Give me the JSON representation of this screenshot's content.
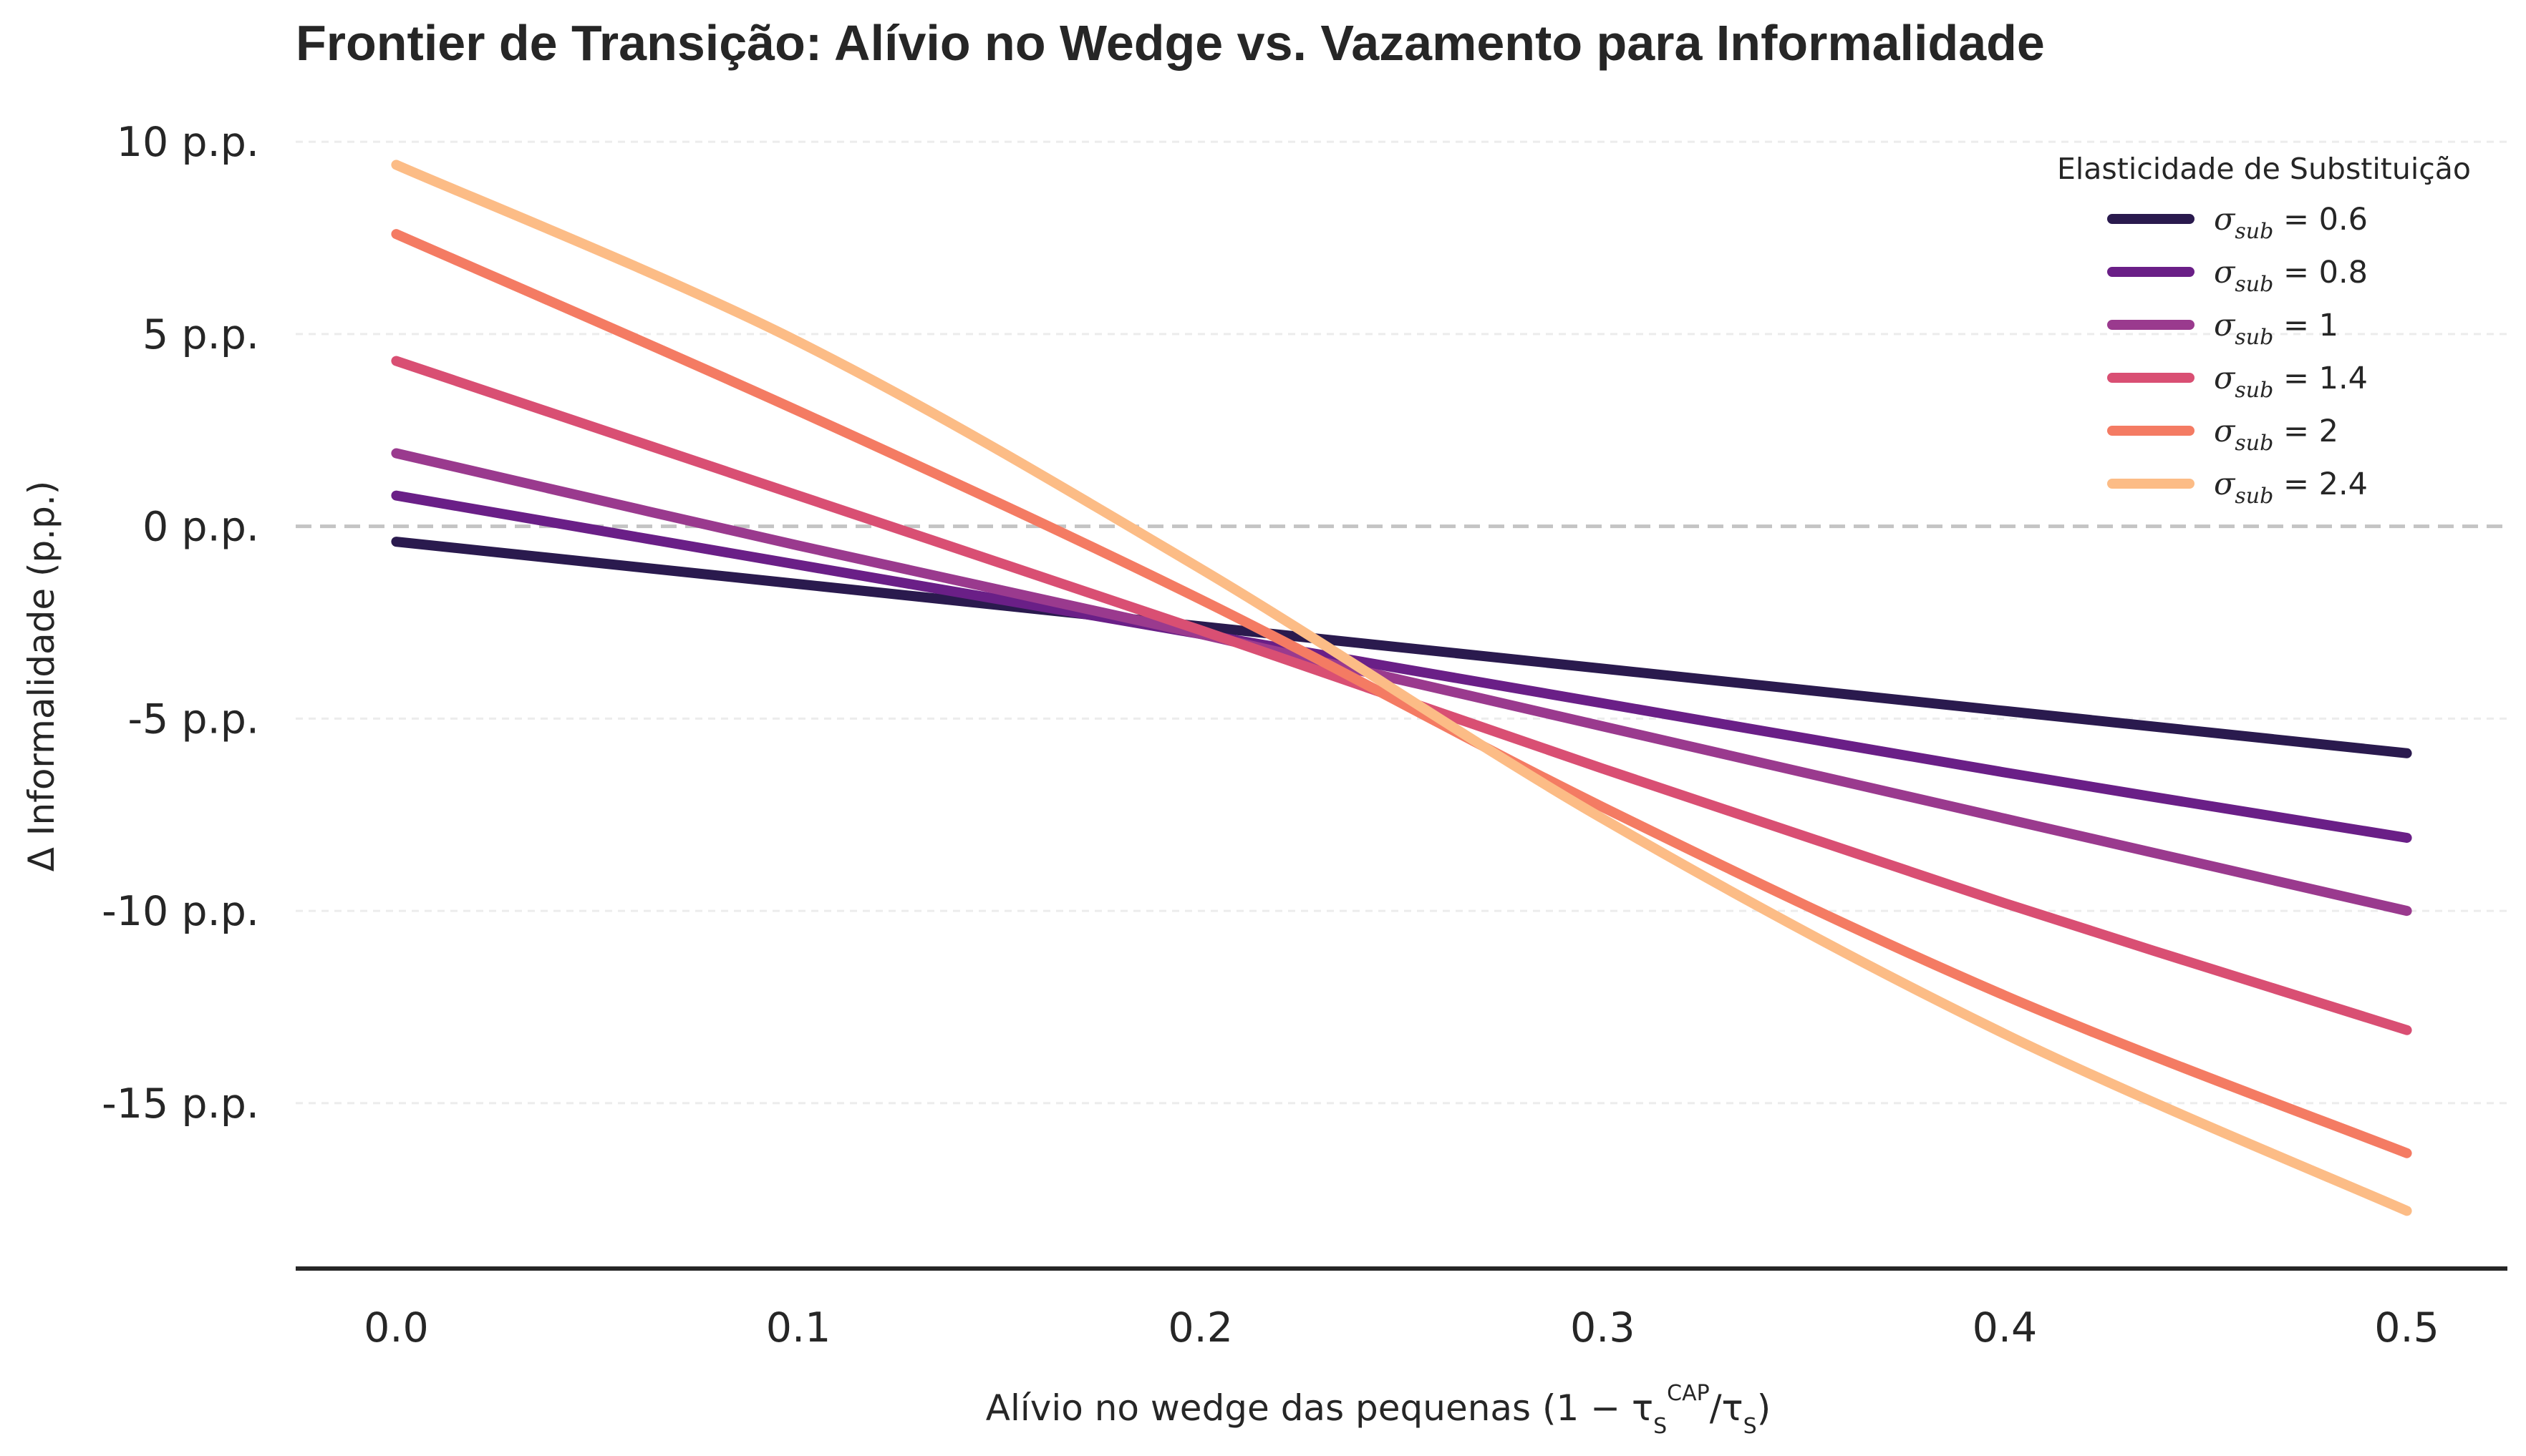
{
  "chart_data": {
    "type": "line",
    "title": "Frontier de Transição: Alívio no Wedge vs. Vazamento para Informalidade",
    "xlabel_prefix": "Alívio no wedge das pequenas (1 − τ",
    "xlabel_sub1": "S",
    "xlabel_sup1": "CAP",
    "xlabel_mid": "/τ",
    "xlabel_sub2": "S",
    "xlabel_suffix": ")",
    "ylabel": "Δ Informalidade (p.p.)",
    "xlim": [
      -0.025,
      0.525
    ],
    "ylim": [
      -19.3,
      10.3
    ],
    "x_ticks": [
      0.0,
      0.1,
      0.2,
      0.3,
      0.4,
      0.5
    ],
    "x_tick_labels": [
      "0.0",
      "0.1",
      "0.2",
      "0.3",
      "0.4",
      "0.5"
    ],
    "y_ticks": [
      10,
      5,
      0,
      -5,
      -10,
      -15
    ],
    "y_tick_labels": [
      "10 p.p.",
      "5 p.p.",
      "0 p.p.",
      "-5 p.p.",
      "-10 p.p.",
      "-15 p.p."
    ],
    "reference_line_y": 0,
    "grid": "horizontal dotted",
    "legend": {
      "title": "Elasticidade de Substituição",
      "placement": "top-right",
      "symbol": "σ",
      "subscript": "sub"
    },
    "x": [
      0.0,
      0.1,
      0.2,
      0.3,
      0.4,
      0.5
    ],
    "series": [
      {
        "name": "σ_sub = 0.6",
        "label_value": "0.6",
        "color": "#2a1a4e",
        "values": [
          -0.4,
          -1.5,
          -2.6,
          -3.7,
          -4.8,
          -5.9
        ]
      },
      {
        "name": "σ_sub = 0.8",
        "label_value": "0.8",
        "color": "#6a1f87",
        "values": [
          0.8,
          -1.0,
          -2.8,
          -4.6,
          -6.4,
          -8.1
        ]
      },
      {
        "name": "σ_sub = 1",
        "label_value": "1",
        "color": "#9a3a8e",
        "values": [
          1.9,
          -0.5,
          -2.8,
          -5.2,
          -7.6,
          -10.0
        ]
      },
      {
        "name": "σ_sub = 1.4",
        "label_value": "1.4",
        "color": "#d94f73",
        "values": [
          4.3,
          0.8,
          -2.7,
          -6.3,
          -9.8,
          -13.1
        ]
      },
      {
        "name": "σ_sub = 2",
        "label_value": "2",
        "color": "#f47b63",
        "values": [
          7.6,
          3.0,
          -1.9,
          -7.3,
          -12.2,
          -16.3
        ]
      },
      {
        "name": "σ_sub = 2.4",
        "label_value": "2.4",
        "color": "#fcbc86",
        "values": [
          9.4,
          4.8,
          -1.1,
          -7.6,
          -13.2,
          -17.8
        ]
      }
    ]
  }
}
